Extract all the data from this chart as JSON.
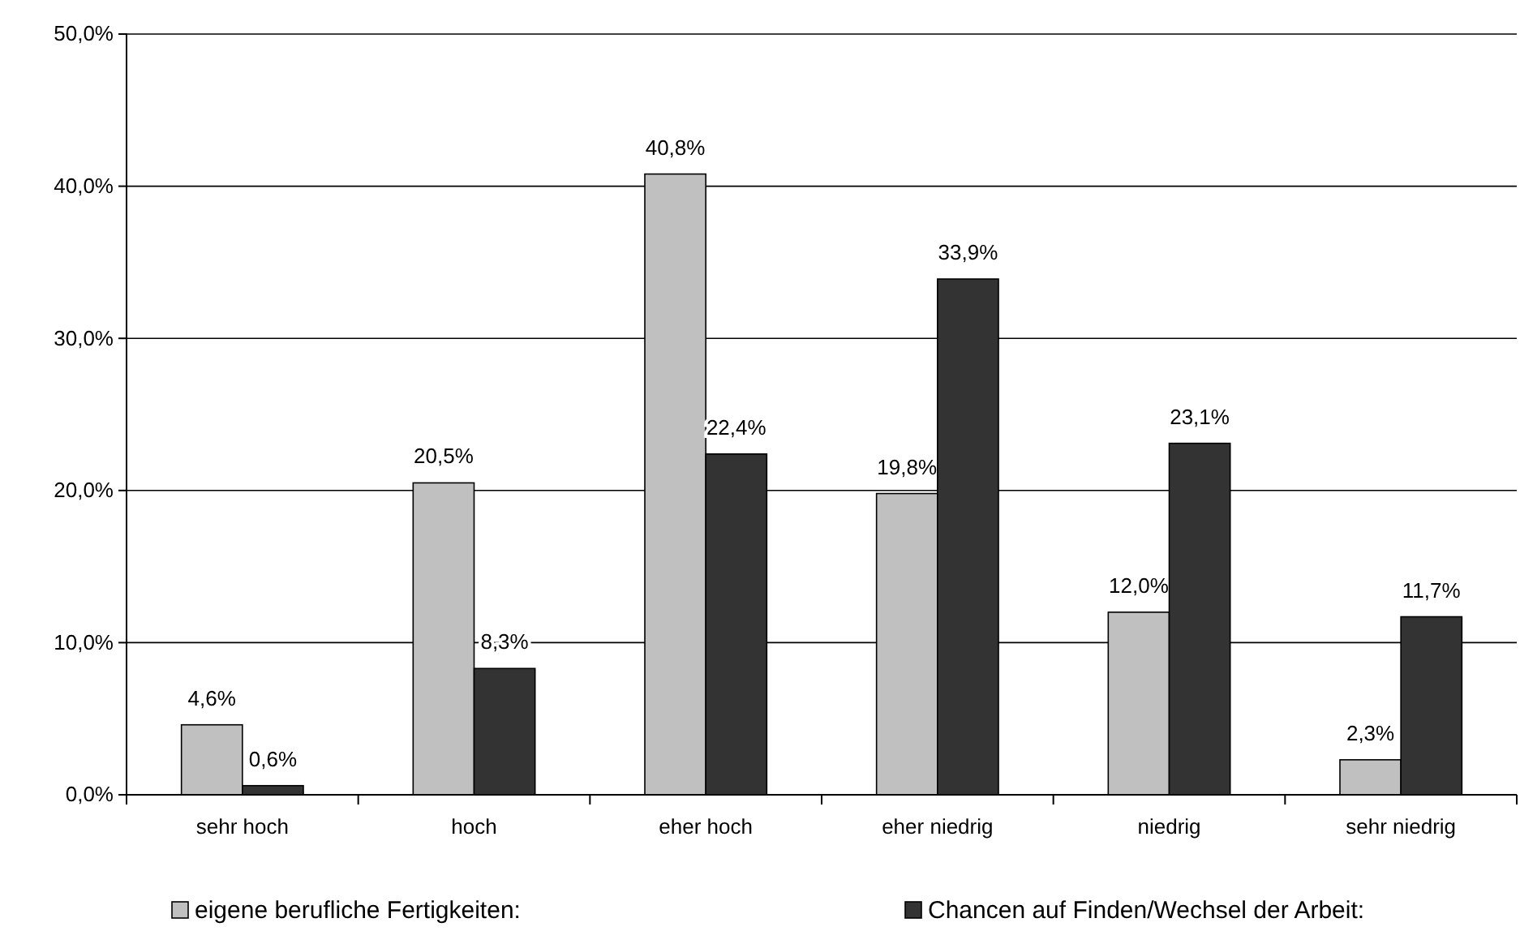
{
  "chart_data": {
    "type": "bar",
    "categories": [
      "sehr hoch",
      "hoch",
      "eher hoch",
      "eher niedrig",
      "niedrig",
      "sehr niedrig"
    ],
    "series": [
      {
        "name": "eigene berufliche Fertigkeiten:",
        "color": "#c0c0c0",
        "values": [
          4.6,
          20.5,
          40.8,
          19.8,
          12.0,
          2.3
        ],
        "value_labels": [
          "4,6%",
          "20,5%",
          "40,8%",
          "19,8%",
          "12,0%",
          "2,3%"
        ]
      },
      {
        "name": "Chancen auf Finden/Wechsel der Arbeit:",
        "color": "#333333",
        "values": [
          0.6,
          8.3,
          22.4,
          33.9,
          23.1,
          11.7
        ],
        "value_labels": [
          "0,6%",
          "8,3%",
          "22,4%",
          "33,9%",
          "23,1%",
          "11,7%"
        ]
      }
    ],
    "ylim": [
      0,
      50
    ],
    "yticks": [
      {
        "value": 0,
        "label": "0,0%"
      },
      {
        "value": 10,
        "label": "10,0%"
      },
      {
        "value": 20,
        "label": "20,0%"
      },
      {
        "value": 30,
        "label": "30,0%"
      },
      {
        "value": 40,
        "label": "40,0%"
      },
      {
        "value": 50,
        "label": "50,0%"
      }
    ],
    "grid": "y",
    "legend": "bottom"
  }
}
